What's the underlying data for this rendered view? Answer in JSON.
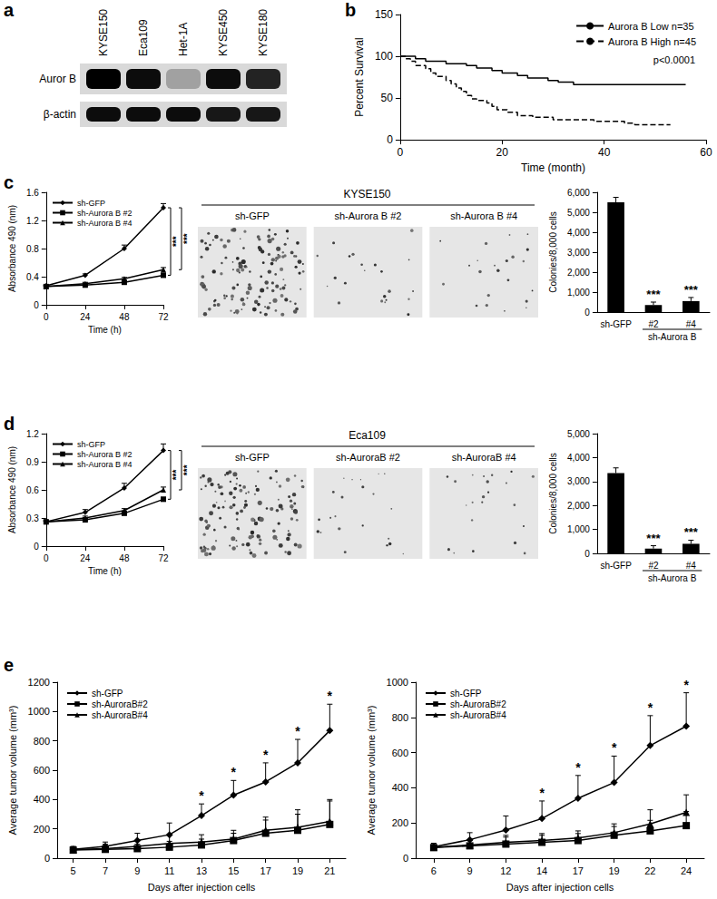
{
  "figure": {
    "panel_labels": [
      "a",
      "b",
      "c",
      "d",
      "e"
    ]
  },
  "blot": {
    "lanes": [
      "KYSE150",
      "Eca109",
      "Het-1A",
      "KYSE450",
      "KYSE180"
    ],
    "rows": [
      {
        "label": "Auror B",
        "intensity": [
          1,
          0.95,
          0.3,
          0.95,
          0.85
        ]
      },
      {
        "label": "β-actin",
        "intensity": [
          0.95,
          0.95,
          0.95,
          0.9,
          0.9
        ]
      }
    ]
  },
  "colony_images": [
    {
      "title": "KYSE150",
      "labels": [
        "sh-GFP",
        "sh-Aurora B #2",
        "sh-Aurora B #4"
      ]
    },
    {
      "title": "Eca109",
      "labels": [
        "sh-GFP",
        "sh-AuroraB #2",
        "sh-AuroraB #4"
      ]
    }
  ],
  "chart_data": [
    {
      "type": "step",
      "x_label": "Time (month)",
      "y_label": "Percent Survival",
      "xlim": [
        0,
        60
      ],
      "xticks": [
        0,
        20,
        40,
        60
      ],
      "ylim": [
        0,
        150
      ],
      "yticks": [
        0,
        50,
        100,
        150
      ],
      "legend": "top-right",
      "annotations": [
        "p<0.0001"
      ],
      "series": [
        {
          "name": "Aurora B Low n=35",
          "color": "#000000",
          "line_style": "solid",
          "x": [
            0,
            3,
            5,
            9,
            13,
            15,
            18,
            20,
            23,
            25,
            29,
            31,
            34,
            56
          ],
          "values": [
            100,
            97,
            94,
            91,
            89,
            86,
            83,
            80,
            77,
            74,
            71,
            69,
            66,
            66
          ]
        },
        {
          "name": "Aurora B High n=45",
          "color": "#000000",
          "line_style": "dashed",
          "x": [
            0,
            1,
            2,
            3,
            5,
            6,
            7,
            9,
            10,
            11,
            12,
            13,
            14,
            15,
            17,
            18,
            19,
            21,
            23,
            26,
            30,
            38,
            44,
            46,
            53
          ],
          "values": [
            100,
            97,
            94,
            89,
            85,
            80,
            76,
            71,
            67,
            62,
            58,
            53,
            49,
            47,
            44,
            40,
            36,
            33,
            29,
            27,
            24,
            22,
            20,
            18,
            18
          ]
        }
      ]
    },
    {
      "type": "line",
      "x_label": "Time (h)",
      "y_label": "Absorbance 490 (nm)",
      "categories": [
        "0",
        "24",
        "48",
        "72"
      ],
      "ylim": [
        0,
        1.6
      ],
      "yticks": [
        0,
        0.4,
        0.8,
        1.2,
        1.6
      ],
      "legend": "top-left",
      "series": [
        {
          "name": "sh-GFP",
          "color": "#000000",
          "marker": "diamond",
          "values": [
            0.27,
            0.42,
            0.8,
            1.38
          ],
          "errors": [
            0.01,
            0.02,
            0.05,
            0.06
          ]
        },
        {
          "name": "sh-Aurora B #2",
          "color": "#000000",
          "marker": "square",
          "values": [
            0.26,
            0.28,
            0.32,
            0.42
          ],
          "errors": [
            0.01,
            0.01,
            0.02,
            0.03
          ]
        },
        {
          "name": "sh-Aurora B #4",
          "color": "#000000",
          "marker": "triangle",
          "values": [
            0.26,
            0.3,
            0.37,
            0.5
          ],
          "errors": [
            0.01,
            0.02,
            0.02,
            0.03
          ]
        }
      ],
      "brackets": [
        {
          "series": [
            "sh-GFP",
            "sh-Aurora B #2"
          ],
          "label": "***"
        },
        {
          "series": [
            "sh-GFP",
            "sh-Aurora B #4"
          ],
          "label": "***"
        }
      ]
    },
    {
      "type": "bar",
      "y_label": "Colonies/8,000 cells",
      "categories": [
        "sh-GFP",
        "#2",
        "#4"
      ],
      "values": [
        5500,
        350,
        550
      ],
      "errors": [
        250,
        150,
        180
      ],
      "color": "#000000",
      "ylim": [
        0,
        6000
      ],
      "yticks": [
        0,
        {
          "value": 1000,
          "label": "1,000"
        },
        {
          "value": 2000,
          "label": "2,000"
        },
        {
          "value": 3000,
          "label": "3,000"
        },
        {
          "value": 4000,
          "label": "4,000"
        },
        {
          "value": 5000,
          "label": "5,000"
        },
        {
          "value": 6000,
          "label": "6,000"
        }
      ],
      "significance": [
        null,
        "***",
        "***"
      ],
      "group_label": {
        "label": "sh-Aurora B",
        "categories": [
          "#2",
          "#4"
        ]
      }
    },
    {
      "type": "line",
      "x_label": "Time (h)",
      "y_label": "Absorbance 490 (nm)",
      "categories": [
        "0",
        "24",
        "48",
        "72"
      ],
      "ylim": [
        0,
        1.2
      ],
      "yticks": [
        0,
        0.3,
        0.6,
        0.9,
        1.2
      ],
      "legend": "top-left",
      "series": [
        {
          "name": "sh-GFP",
          "color": "#000000",
          "marker": "diamond",
          "values": [
            0.26,
            0.36,
            0.62,
            1.02
          ],
          "errors": [
            0.01,
            0.03,
            0.05,
            0.07
          ]
        },
        {
          "name": "sh-Aurora B #2",
          "color": "#000000",
          "marker": "square",
          "values": [
            0.26,
            0.28,
            0.35,
            0.5
          ],
          "errors": [
            0.01,
            0.01,
            0.02,
            0.02
          ]
        },
        {
          "name": "sh-Aurora B #4",
          "color": "#000000",
          "marker": "triangle",
          "values": [
            0.26,
            0.3,
            0.38,
            0.6
          ],
          "errors": [
            0.01,
            0.02,
            0.02,
            0.03
          ]
        }
      ],
      "brackets": [
        {
          "series": [
            "sh-GFP",
            "sh-Aurora B #2"
          ],
          "label": "***"
        },
        {
          "series": [
            "sh-GFP",
            "sh-Aurora B #4"
          ],
          "label": "***"
        }
      ]
    },
    {
      "type": "bar",
      "y_label": "Colonies/8,000 cells",
      "categories": [
        "sh-GFP",
        "#2",
        "#4"
      ],
      "values": [
        3350,
        200,
        400
      ],
      "errors": [
        220,
        120,
        150
      ],
      "color": "#000000",
      "ylim": [
        0,
        5000
      ],
      "yticks": [
        0,
        {
          "value": 1000,
          "label": "1,000"
        },
        {
          "value": 2000,
          "label": "2,000"
        },
        {
          "value": 3000,
          "label": "3,000"
        },
        {
          "value": 4000,
          "label": "4,000"
        },
        {
          "value": 5000,
          "label": "5,000"
        }
      ],
      "significance": [
        null,
        "***",
        "***"
      ],
      "group_label": {
        "label": "sh-Aurora B",
        "categories": [
          "#2",
          "#4"
        ]
      }
    },
    {
      "type": "line",
      "x_label": "Days after injection cells",
      "y_label": "Average tumor volume (mm³)",
      "categories": [
        "5",
        "7",
        "9",
        "11",
        "13",
        "15",
        "17",
        "19",
        "21"
      ],
      "ylim": [
        0,
        1200
      ],
      "yticks": [
        0,
        200,
        400,
        600,
        800,
        1000,
        1200
      ],
      "legend": "top-left",
      "series": [
        {
          "name": "sh-GFP",
          "color": "#000000",
          "marker": "diamond",
          "values": [
            60,
            80,
            120,
            160,
            290,
            430,
            520,
            650,
            870
          ],
          "errors": [
            20,
            30,
            50,
            80,
            80,
            100,
            130,
            160,
            180
          ]
        },
        {
          "name": "sh-AuroraB#2",
          "color": "#000000",
          "marker": "square",
          "values": [
            55,
            60,
            65,
            75,
            90,
            120,
            170,
            190,
            230
          ],
          "errors": [
            20,
            25,
            30,
            40,
            40,
            50,
            90,
            110,
            160
          ]
        },
        {
          "name": "sh-AuroraB#4",
          "color": "#000000",
          "marker": "triangle",
          "values": [
            58,
            65,
            80,
            100,
            110,
            130,
            190,
            210,
            250
          ],
          "errors": [
            20,
            30,
            40,
            60,
            50,
            60,
            90,
            120,
            150
          ]
        }
      ],
      "significance": [
        null,
        null,
        null,
        null,
        "*",
        "*",
        "*",
        "*",
        "*"
      ]
    },
    {
      "type": "line",
      "x_label": "Days after injection cells",
      "y_label": "Average tumor volume (mm³)",
      "categories": [
        "6",
        "9",
        "12",
        "14",
        "17",
        "19",
        "22",
        "24"
      ],
      "ylim": [
        0,
        1000
      ],
      "yticks": [
        0,
        200,
        400,
        600,
        800,
        1000
      ],
      "legend": "top-left",
      "series": [
        {
          "name": "sh-GFP",
          "color": "#000000",
          "marker": "diamond",
          "values": [
            65,
            105,
            160,
            225,
            340,
            430,
            640,
            750
          ],
          "errors": [
            20,
            40,
            80,
            100,
            130,
            150,
            170,
            190
          ]
        },
        {
          "name": "sh-AuroraB#2",
          "color": "#000000",
          "marker": "square",
          "values": [
            60,
            70,
            80,
            90,
            100,
            130,
            155,
            185
          ],
          "errors": [
            15,
            30,
            40,
            40,
            40,
            50,
            60,
            80
          ]
        },
        {
          "name": "sh-AuroraB#4",
          "color": "#000000",
          "marker": "triangle",
          "values": [
            62,
            75,
            90,
            100,
            115,
            145,
            195,
            260
          ],
          "errors": [
            15,
            30,
            40,
            40,
            40,
            50,
            80,
            100
          ]
        }
      ],
      "significance": [
        null,
        null,
        null,
        "*",
        "*",
        "*",
        "*",
        "*"
      ]
    }
  ]
}
